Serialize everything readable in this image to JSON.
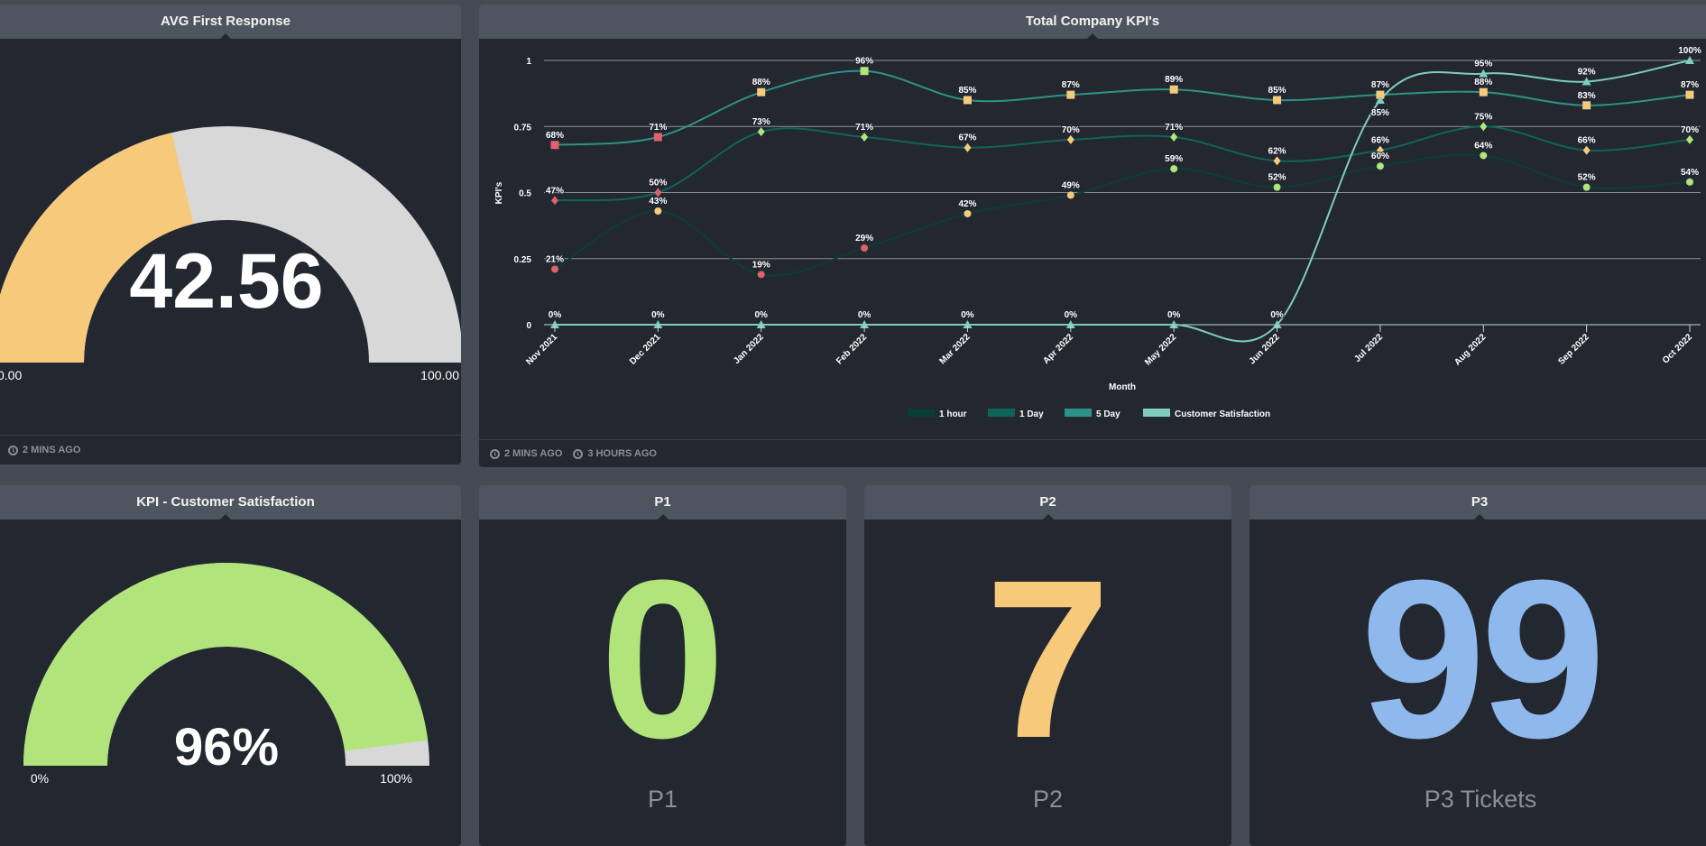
{
  "panels": {
    "avg_first_response": {
      "title": "AVG First Response",
      "value": 42.56,
      "value_label": "42.56",
      "min_label": "0.00",
      "max_label": "100.00",
      "min": 0,
      "max": 100,
      "fill_color": "#f7c97b",
      "track_color": "#d8d8d8",
      "footer": [
        "2 MINS AGO"
      ]
    },
    "kpi_chart": {
      "title": "Total Company KPI's",
      "footer": [
        "2 MINS AGO",
        "3 HOURS AGO"
      ]
    },
    "customer_satisfaction": {
      "title": "KPI - Customer Satisfaction",
      "value": 96,
      "value_label": "96%",
      "min_label": "0%",
      "max_label": "100%",
      "min": 0,
      "max": 100,
      "fill_color": "#b1e47a",
      "track_color": "#d8d8d8"
    },
    "p1": {
      "title": "P1",
      "value": "0",
      "label": "P1",
      "color": "#b1e47a"
    },
    "p2": {
      "title": "P2",
      "value": "7",
      "label": "P2",
      "color": "#f7c97b"
    },
    "p3": {
      "title": "P3",
      "value": "99",
      "label": "P3 Tickets",
      "color": "#8fb9ec"
    }
  },
  "chart_data": {
    "type": "line",
    "title": "Total Company KPI's",
    "xlabel": "Month",
    "ylabel": "KPI's",
    "ylim": [
      0,
      1
    ],
    "yticks": [
      0,
      0.25,
      0.5,
      0.75,
      1
    ],
    "ytick_labels": [
      "0",
      "0.25",
      "0.5",
      "0.75",
      "1"
    ],
    "grid": true,
    "legend_position": "bottom",
    "categories": [
      "Nov 2021",
      "Dec 2021",
      "Jan 2022",
      "Feb 2022",
      "Mar 2022",
      "Apr 2022",
      "May 2022",
      "Jun 2022",
      "Jul 2022",
      "Aug 2022",
      "Sep 2022",
      "Oct 2022"
    ],
    "series": [
      {
        "name": "1 hour",
        "color": "#0b3d33",
        "marker": "circle",
        "values": [
          0.21,
          0.43,
          0.19,
          0.29,
          0.42,
          0.49,
          0.59,
          0.52,
          0.6,
          0.64,
          0.52,
          0.54
        ],
        "labels": [
          "21%",
          "43%",
          "19%",
          "29%",
          "42%",
          "49%",
          "59%",
          "52%",
          "60%",
          "64%",
          "52%",
          "54%"
        ],
        "marker_colors": [
          "#e0606e",
          "#f7c97b",
          "#e0606e",
          "#e0606e",
          "#f7c97b",
          "#f7c97b",
          "#b1e47a",
          "#b1e47a",
          "#b1e47a",
          "#b1e47a",
          "#b1e47a",
          "#b1e47a"
        ]
      },
      {
        "name": "1 Day",
        "color": "#0f645a",
        "marker": "diamond",
        "values": [
          0.47,
          0.5,
          0.73,
          0.71,
          0.67,
          0.7,
          0.71,
          0.62,
          0.66,
          0.75,
          0.66,
          0.7
        ],
        "labels": [
          "47%",
          "50%",
          "73%",
          "71%",
          "67%",
          "70%",
          "71%",
          "62%",
          "66%",
          "75%",
          "66%",
          "70%"
        ],
        "marker_colors": [
          "#e0606e",
          "#e0606e",
          "#b1e47a",
          "#b1e47a",
          "#f7c97b",
          "#f7c97b",
          "#b1e47a",
          "#f7c97b",
          "#f7c97b",
          "#b1e47a",
          "#f7c97b",
          "#b1e47a"
        ]
      },
      {
        "name": "5 Day",
        "color": "#2f9288",
        "marker": "square",
        "values": [
          0.68,
          0.71,
          0.88,
          0.96,
          0.85,
          0.87,
          0.89,
          0.85,
          0.87,
          0.88,
          0.83,
          0.87
        ],
        "labels": [
          "68%",
          "71%",
          "88%",
          "96%",
          "85%",
          "87%",
          "89%",
          "85%",
          "87%",
          "88%",
          "83%",
          "87%"
        ],
        "marker_colors": [
          "#e0606e",
          "#e0606e",
          "#f7c97b",
          "#b1e47a",
          "#f7c97b",
          "#f7c97b",
          "#f7c97b",
          "#f7c97b",
          "#f7c97b",
          "#f7c97b",
          "#f7c97b",
          "#f7c97b"
        ]
      },
      {
        "name": "Customer Satisfaction",
        "color": "#7ecdbd",
        "marker": "triangle",
        "values": [
          0,
          0,
          0,
          0,
          0,
          0,
          0,
          0,
          0.85,
          0.95,
          0.92,
          1.0
        ],
        "labels": [
          "0%",
          "0%",
          "0%",
          "0%",
          "0%",
          "0%",
          "0%",
          "0%",
          "85%",
          "95%",
          "92%",
          "100%"
        ],
        "marker_colors": [
          "#7ecdbd",
          "#7ecdbd",
          "#7ecdbd",
          "#7ecdbd",
          "#7ecdbd",
          "#7ecdbd",
          "#7ecdbd",
          "#7ecdbd",
          "#7ecdbd",
          "#7ecdbd",
          "#7ecdbd",
          "#7ecdbd"
        ]
      }
    ]
  }
}
